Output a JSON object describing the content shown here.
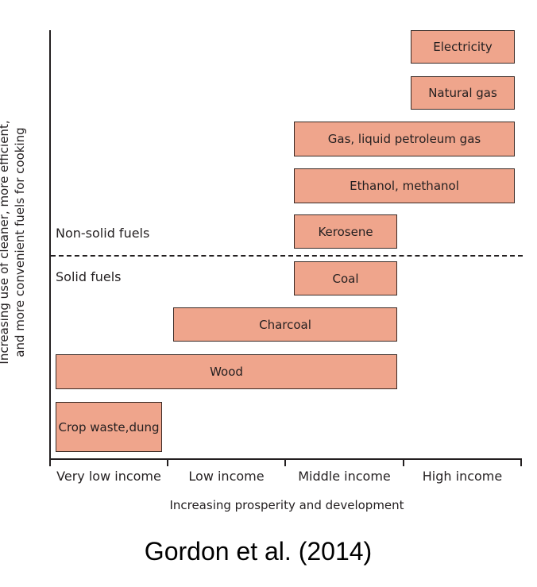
{
  "diagram": {
    "y_axis_title_line1": "Increasing use of cleaner, more efficient,",
    "y_axis_title_line2": "and more convenient fuels for cooking",
    "x_axis_title": "Increasing prosperity and development",
    "x_categories": [
      "Very low income",
      "Low income",
      "Middle income",
      "High income"
    ],
    "region_labels": {
      "upper": "Non-solid fuels",
      "lower": "Solid fuels"
    },
    "fuels": [
      {
        "label": "Electricity",
        "from": "High income",
        "to": "High income"
      },
      {
        "label": "Natural gas",
        "from": "High income",
        "to": "High income"
      },
      {
        "label": "Gas, liquid petroleum gas",
        "from": "Middle income",
        "to": "High income"
      },
      {
        "label": "Ethanol, methanol",
        "from": "Middle income",
        "to": "High income"
      },
      {
        "label": "Kerosene",
        "from": "Middle income",
        "to": "Middle income"
      },
      {
        "label": "Coal",
        "from": "Middle income",
        "to": "Middle income"
      },
      {
        "label": "Charcoal",
        "from": "Low income",
        "to": "Middle income"
      },
      {
        "label": "Wood",
        "from": "Very low income",
        "to": "Middle income"
      },
      {
        "label_line1": "Crop waste,",
        "label_line2": "dung",
        "from": "Very low income",
        "to": "Very low income"
      }
    ],
    "box_color": "#efa58c"
  },
  "citation": "Gordon et al. (2014)"
}
